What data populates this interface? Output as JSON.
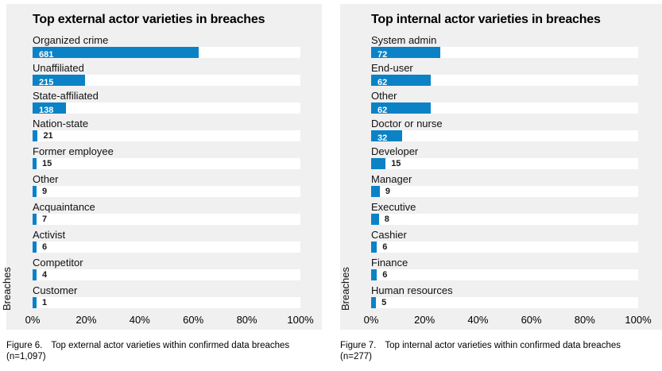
{
  "colors": {
    "bar": "#0b82c6",
    "panel_bg": "#f0f0f1",
    "track_bg": "#ffffff",
    "value_inside_text": "#ffffff",
    "text": "#000000"
  },
  "chart_data": [
    {
      "type": "bar",
      "orientation": "horizontal",
      "title": "Top external actor varieties in breaches",
      "ylabel": "Breaches",
      "x_ticks": [
        "0%",
        "20%",
        "40%",
        "60%",
        "80%",
        "100%"
      ],
      "xlim_pct": [
        0,
        100
      ],
      "n_total": 1097,
      "categories": [
        "Organized crime",
        "Unaffiliated",
        "State-affiliated",
        "Nation-state",
        "Former employee",
        "Other",
        "Acquaintance",
        "Activist",
        "Competitor",
        "Customer"
      ],
      "values": [
        681,
        215,
        138,
        21,
        15,
        9,
        7,
        6,
        4,
        1
      ],
      "caption": {
        "label": "Figure 6.",
        "line1": "Top external actor varieties within confirmed data breaches",
        "line2": "(n=1,097)"
      }
    },
    {
      "type": "bar",
      "orientation": "horizontal",
      "title": "Top internal actor varieties in breaches",
      "ylabel": "Breaches",
      "x_ticks": [
        "0%",
        "20%",
        "40%",
        "60%",
        "80%",
        "100%"
      ],
      "xlim_pct": [
        0,
        100
      ],
      "n_total": 277,
      "categories": [
        "System admin",
        "End-user",
        "Other",
        "Doctor or nurse",
        "Developer",
        "Manager",
        "Executive",
        "Cashier",
        "Finance",
        "Human resources"
      ],
      "values": [
        72,
        62,
        62,
        32,
        15,
        9,
        8,
        6,
        6,
        5
      ],
      "caption": {
        "label": "Figure 7.",
        "line1": "Top internal actor varieties within confirmed data breaches",
        "line2": "(n=277)"
      }
    }
  ]
}
